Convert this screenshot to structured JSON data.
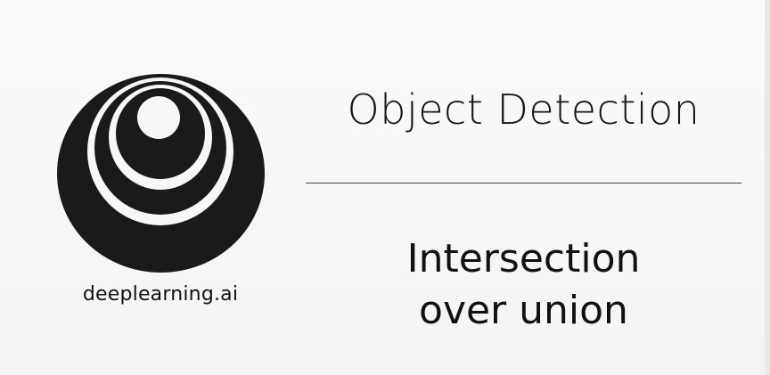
{
  "brand": {
    "name": "deeplearning.ai",
    "logo_icon": "concentric-circles-logo-icon"
  },
  "slide": {
    "title": "Object Detection",
    "subtitle_line1": "Intersection",
    "subtitle_line2": "over union"
  },
  "colors": {
    "background": "#f7f7f7",
    "logo": "#1a1a1a",
    "text": "#111111"
  }
}
